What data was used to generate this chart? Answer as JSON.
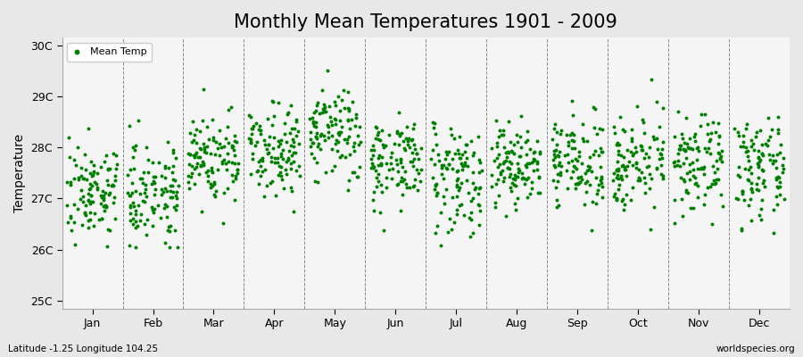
{
  "title": "Monthly Mean Temperatures 1901 - 2009",
  "ylabel": "Temperature",
  "xlabel_bottom_left": "Latitude -1.25 Longitude 104.25",
  "xlabel_bottom_right": "worldspecies.org",
  "legend_label": "Mean Temp",
  "marker_color": "#008000",
  "figure_bg_color": "#e8e8e8",
  "plot_bg_color": "#f5f5f5",
  "ytick_labels": [
    "25C",
    "26C",
    "27C",
    "28C",
    "29C",
    "30C"
  ],
  "ytick_values": [
    25,
    26,
    27,
    28,
    29,
    30
  ],
  "ylim": [
    24.85,
    30.15
  ],
  "months": [
    "Jan",
    "Feb",
    "Mar",
    "Apr",
    "May",
    "Jun",
    "Jul",
    "Aug",
    "Sep",
    "Oct",
    "Nov",
    "Dec"
  ],
  "n_years": 109,
  "seed": 7,
  "monthly_means": [
    27.15,
    27.15,
    27.8,
    28.0,
    28.25,
    27.75,
    27.45,
    27.65,
    27.7,
    27.75,
    27.65,
    27.55
  ],
  "monthly_stds": [
    0.45,
    0.48,
    0.45,
    0.42,
    0.48,
    0.42,
    0.55,
    0.42,
    0.42,
    0.45,
    0.45,
    0.48
  ],
  "title_fontsize": 15,
  "axis_fontsize": 10,
  "tick_fontsize": 9,
  "legend_fontsize": 8,
  "marker_size": 8
}
